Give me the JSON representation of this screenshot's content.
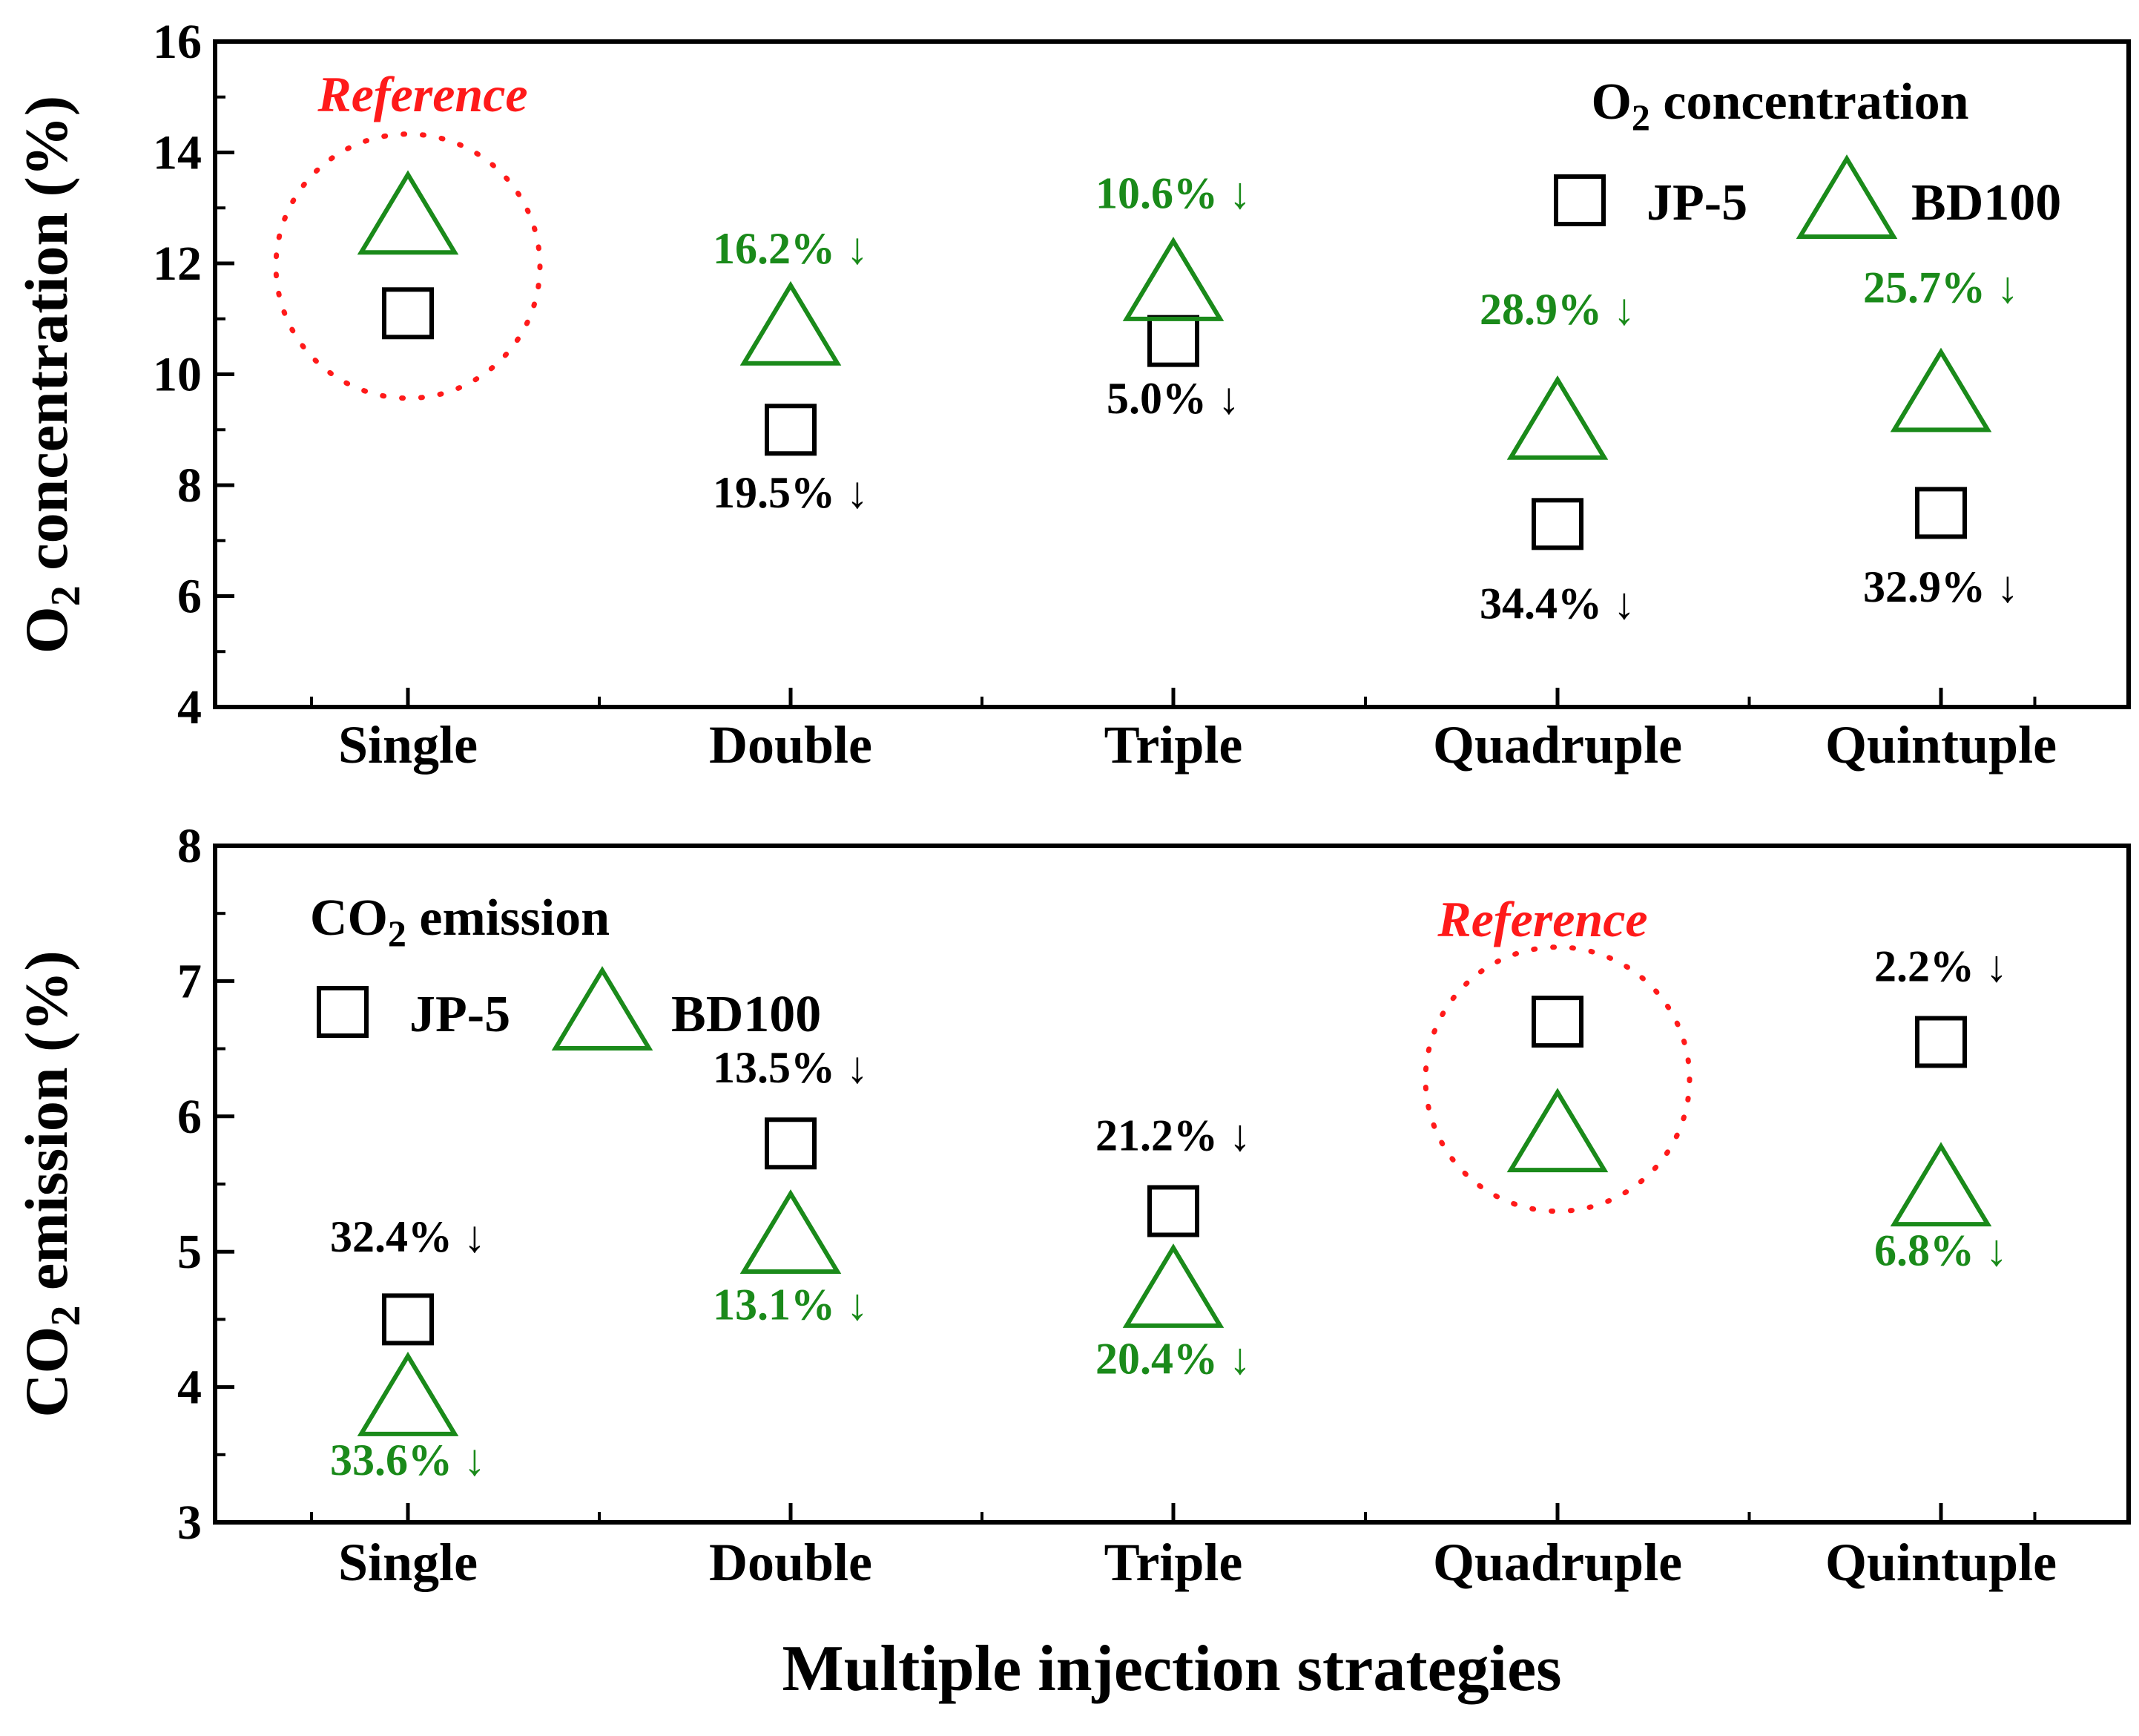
{
  "colors": {
    "jp5": "#000000",
    "bd100": "#1a8a1a",
    "reference": "#ff1a1a"
  },
  "x_title": "Multiple injection strategies",
  "chart_data": [
    {
      "type": "scatter",
      "id": "o2",
      "categories": [
        "Single",
        "Double",
        "Triple",
        "Quadruple",
        "Quintuple"
      ],
      "ylim": [
        4,
        16
      ],
      "yticks": [
        4,
        6,
        8,
        10,
        12,
        14,
        16
      ],
      "ylabel": {
        "main": "O",
        "sub": "2",
        "rest": " concentration (%)"
      },
      "legend_title": {
        "main": "O",
        "sub": "2",
        "rest": " concentration"
      },
      "legend_position": "top-right",
      "series": [
        {
          "name": "JP-5",
          "marker": "square",
          "values": [
            11.1,
            9.0,
            10.6,
            7.3,
            7.5
          ]
        },
        {
          "name": "BD100",
          "marker": "triangle",
          "values": [
            12.8,
            10.8,
            11.6,
            9.1,
            9.6
          ]
        }
      ],
      "reference": {
        "label": "Reference",
        "category": "Single"
      },
      "annotations": [
        {
          "text": "16.2% ↓",
          "series": "BD100",
          "category": "Double",
          "y": 12.0
        },
        {
          "text": "19.5% ↓",
          "series": "JP-5",
          "category": "Double",
          "y": 7.6
        },
        {
          "text": "10.6% ↓",
          "series": "BD100",
          "category": "Triple",
          "y": 13.0
        },
        {
          "text": "5.0% ↓",
          "series": "JP-5",
          "category": "Triple",
          "y": 9.3
        },
        {
          "text": "28.9% ↓",
          "series": "BD100",
          "category": "Quadruple",
          "y": 10.9
        },
        {
          "text": "34.4% ↓",
          "series": "JP-5",
          "category": "Quadruple",
          "y": 5.6
        },
        {
          "text": "25.7% ↓",
          "series": "BD100",
          "category": "Quintuple",
          "y": 11.3
        },
        {
          "text": "32.9% ↓",
          "series": "JP-5",
          "category": "Quintuple",
          "y": 5.9
        }
      ]
    },
    {
      "type": "scatter",
      "id": "co2",
      "categories": [
        "Single",
        "Double",
        "Triple",
        "Quadruple",
        "Quintuple"
      ],
      "ylim": [
        3,
        8
      ],
      "yticks": [
        3,
        4,
        5,
        6,
        7,
        8
      ],
      "ylabel": {
        "main": "CO",
        "sub": "2",
        "rest": " emission (%)"
      },
      "legend_title": {
        "main": "CO",
        "sub": "2",
        "rest": " emission"
      },
      "legend_position": "top-left",
      "series": [
        {
          "name": "JP-5",
          "marker": "square",
          "values": [
            4.5,
            5.8,
            5.3,
            6.7,
            6.55
          ]
        },
        {
          "name": "BD100",
          "marker": "triangle",
          "values": [
            3.9,
            5.1,
            4.7,
            5.85,
            5.45
          ]
        }
      ],
      "reference": {
        "label": "Reference",
        "category": "Quadruple"
      },
      "annotations": [
        {
          "text": "32.4% ↓",
          "series": "JP-5",
          "category": "Single",
          "y": 5.0
        },
        {
          "text": "33.6% ↓",
          "series": "BD100",
          "category": "Single",
          "y": 3.35
        },
        {
          "text": "13.5% ↓",
          "series": "JP-5",
          "category": "Double",
          "y": 6.25
        },
        {
          "text": "13.1% ↓",
          "series": "BD100",
          "category": "Double",
          "y": 4.5
        },
        {
          "text": "21.2% ↓",
          "series": "JP-5",
          "category": "Triple",
          "y": 5.75
        },
        {
          "text": "20.4% ↓",
          "series": "BD100",
          "category": "Triple",
          "y": 4.1
        },
        {
          "text": "2.2% ↓",
          "series": "JP-5",
          "category": "Quintuple",
          "y": 7.0
        },
        {
          "text": "6.8% ↓",
          "series": "BD100",
          "category": "Quintuple",
          "y": 4.9
        }
      ]
    }
  ]
}
